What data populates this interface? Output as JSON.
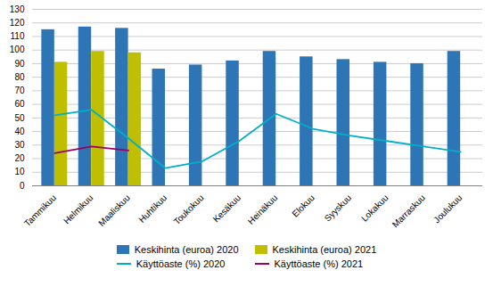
{
  "chart_data": {
    "type": "bar",
    "categories": [
      "Tammikuu",
      "Helmikuu",
      "Maaliskuu",
      "Huhtikuu",
      "Toukokuu",
      "Kesäkuu",
      "Heinäkuu",
      "Elokuu",
      "Syyskuu",
      "Lokakuu",
      "Marraskuu",
      "Joulukuu"
    ],
    "series": [
      {
        "name": "Keskihinta (euroa) 2020",
        "type": "bar",
        "color": "#2E75B6",
        "values": [
          115,
          117,
          116,
          86,
          89,
          92,
          99,
          95,
          93,
          91,
          90,
          99
        ]
      },
      {
        "name": "Keskihinta (euroa) 2021",
        "type": "bar",
        "color": "#BFBF00",
        "values": [
          91,
          99,
          98,
          null,
          null,
          null,
          null,
          null,
          null,
          null,
          null,
          null
        ]
      },
      {
        "name": "Käyttöaste (%) 2020",
        "type": "line",
        "color": "#00B0C8",
        "values": [
          52,
          56,
          35,
          13,
          18,
          33,
          53,
          42,
          37,
          33,
          29,
          25
        ]
      },
      {
        "name": "Käyttöaste (%) 2021",
        "type": "line",
        "color": "#9B0063",
        "values": [
          24,
          29,
          26,
          null,
          null,
          null,
          null,
          null,
          null,
          null,
          null,
          null
        ]
      }
    ],
    "ylim": [
      0,
      130
    ],
    "yticks": [
      0,
      10,
      20,
      30,
      40,
      50,
      60,
      70,
      80,
      90,
      100,
      110,
      120,
      130
    ],
    "grid": true,
    "legend": "bottom"
  }
}
